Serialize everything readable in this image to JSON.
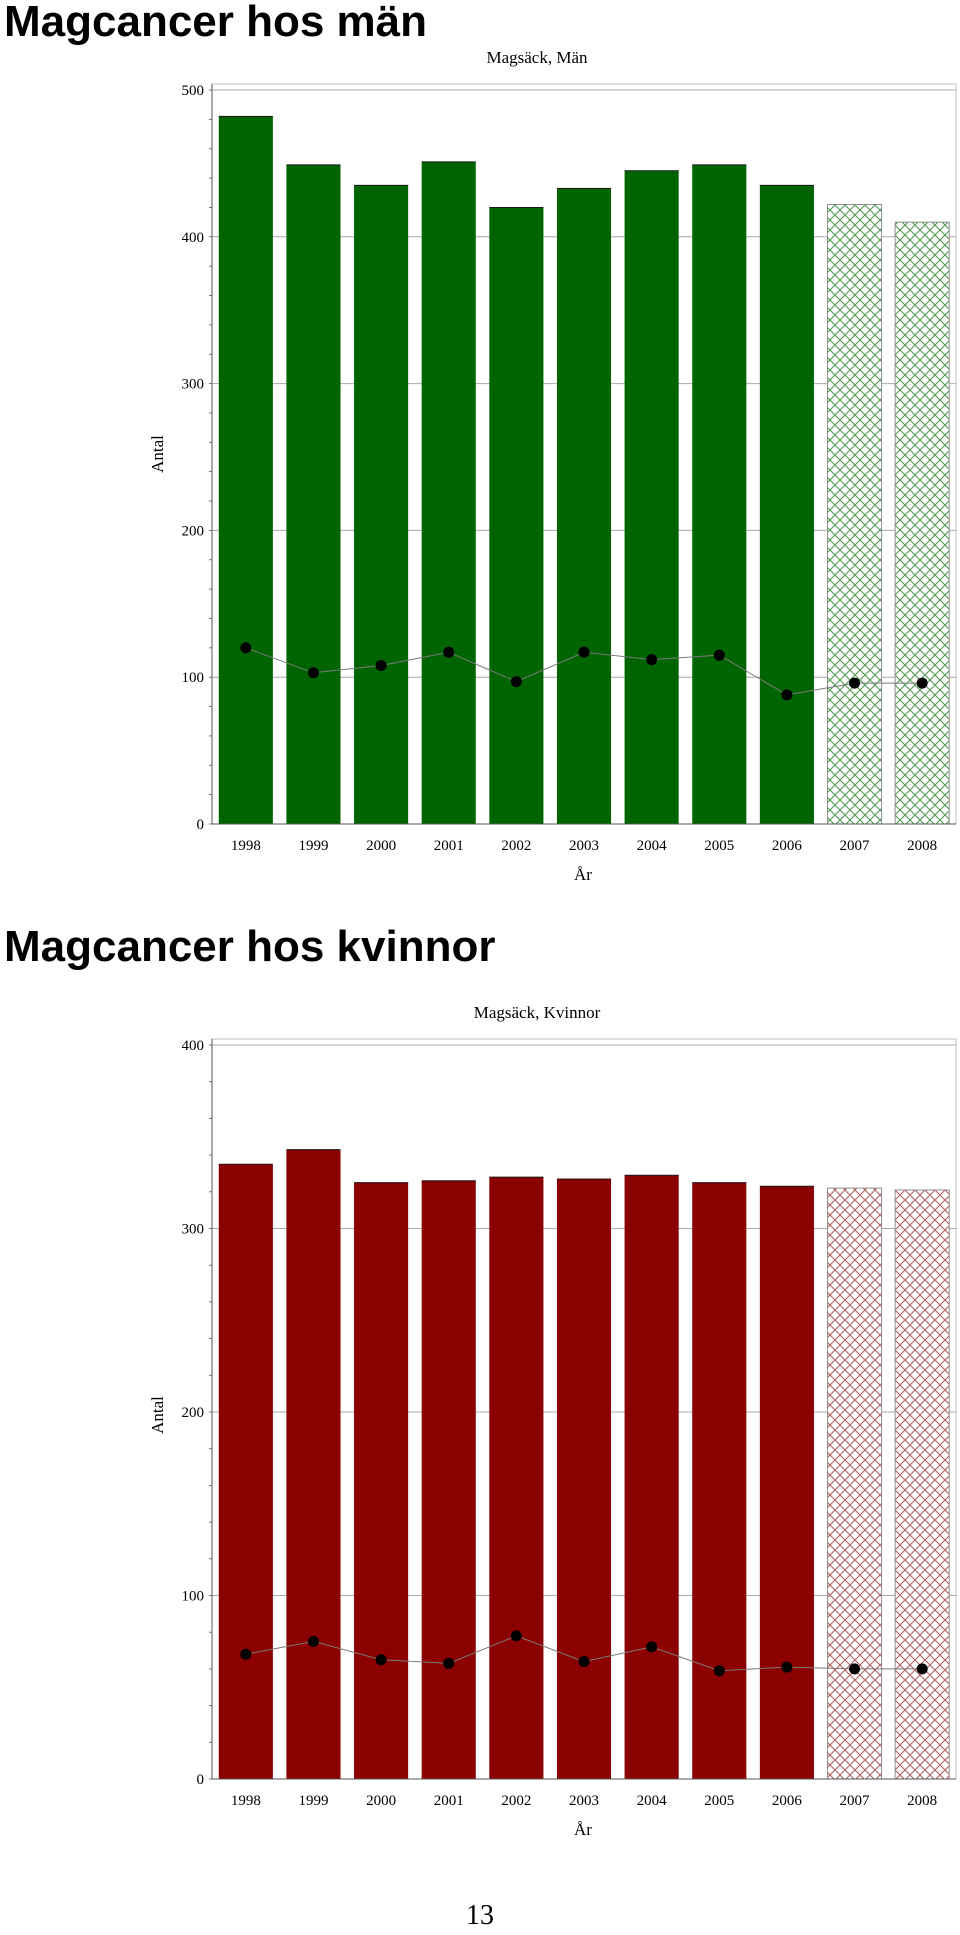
{
  "headings": [
    "Magcancer hos män",
    "Magcancer hos kvinnor"
  ],
  "page_number": "13",
  "chart_data": [
    {
      "type": "bar",
      "title": "Magsäck, Män",
      "xlabel": "År",
      "ylabel": "Antal",
      "ylim": [
        0,
        500
      ],
      "yticks": [
        0,
        100,
        200,
        300,
        400,
        500
      ],
      "grid": true,
      "categories": [
        "1998",
        "1999",
        "2000",
        "2001",
        "2002",
        "2003",
        "2004",
        "2005",
        "2006",
        "2007",
        "2008"
      ],
      "series": [
        {
          "type": "bar",
          "values": [
            482,
            449,
            435,
            451,
            420,
            433,
            445,
            449,
            435,
            422,
            410
          ],
          "color": "#006400",
          "hatched_from_index": 9
        },
        {
          "type": "line",
          "values": [
            120,
            103,
            108,
            117,
            97,
            117,
            112,
            115,
            88,
            96,
            96
          ],
          "color": "#000000"
        }
      ]
    },
    {
      "type": "bar",
      "title": "Magsäck, Kvinnor",
      "xlabel": "År",
      "ylabel": "Antal",
      "ylim": [
        0,
        400
      ],
      "yticks": [
        0,
        100,
        200,
        300,
        400
      ],
      "grid": true,
      "categories": [
        "1998",
        "1999",
        "2000",
        "2001",
        "2002",
        "2003",
        "2004",
        "2005",
        "2006",
        "2007",
        "2008"
      ],
      "series": [
        {
          "type": "bar",
          "values": [
            335,
            343,
            325,
            326,
            328,
            327,
            329,
            325,
            323,
            322,
            321
          ],
          "color": "#8b0000",
          "hatched_from_index": 9
        },
        {
          "type": "line",
          "values": [
            68,
            75,
            65,
            63,
            78,
            64,
            72,
            59,
            61,
            60,
            60
          ],
          "color": "#000000"
        }
      ]
    }
  ]
}
